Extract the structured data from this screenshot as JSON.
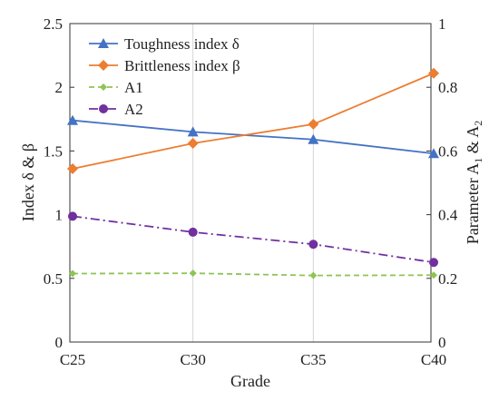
{
  "chart_data": {
    "type": "line",
    "x_label": "Grade",
    "y_left_label": "Index δ & β",
    "y_right_label_base": "Parameter A",
    "y_right_label_sub1": "1",
    "y_right_label_mid": " & A",
    "y_right_label_sub2": "2",
    "categories": [
      "C25",
      "C30",
      "C35",
      "C40"
    ],
    "y_left_ticks": [
      "0",
      "0.5",
      "1",
      "1.5",
      "2",
      "2.5"
    ],
    "y_right_ticks": [
      "0",
      "0.2",
      "0.4",
      "0.6",
      "0.8",
      "1"
    ],
    "y_left_range": [
      0,
      2.5
    ],
    "y_right_range": [
      0,
      1
    ],
    "grid": "vertical",
    "legend_position": "top-left",
    "series": [
      {
        "name": "Toughness index δ",
        "axis": "left",
        "values": [
          1.74,
          1.65,
          1.59,
          1.48
        ],
        "color": "#4472c4",
        "marker": "triangle",
        "dash": "solid"
      },
      {
        "name": "Brittleness index β",
        "axis": "left",
        "values": [
          1.36,
          1.56,
          1.71,
          2.11
        ],
        "color": "#ed7d31",
        "marker": "diamond",
        "dash": "solid"
      },
      {
        "name": "A1",
        "axis": "right",
        "values": [
          0.215,
          0.216,
          0.209,
          0.21
        ],
        "color": "#8fc454",
        "marker": "diamond-small",
        "dash": "dashed"
      },
      {
        "name": "A2",
        "axis": "right",
        "values": [
          0.395,
          0.345,
          0.307,
          0.25
        ],
        "color": "#7030a0",
        "marker": "circle",
        "dash": "dashdot"
      }
    ]
  }
}
